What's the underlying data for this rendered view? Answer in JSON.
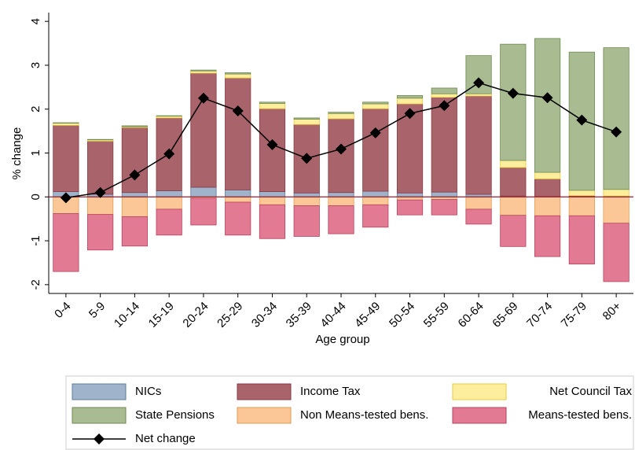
{
  "chart_data": {
    "type": "bar",
    "stacked": true,
    "x_label": "Age group",
    "y_label": "% change",
    "categories": [
      "0-4",
      "5-9",
      "10-14",
      "15-19",
      "20-24",
      "25-29",
      "30-34",
      "35-39",
      "40-44",
      "45-49",
      "50-54",
      "55-59",
      "60-64",
      "65-69",
      "70-74",
      "75-79",
      "80+"
    ],
    "ylim": [
      -2.2,
      4.2
    ],
    "yticks": [
      -2,
      -1,
      0,
      1,
      2,
      3,
      4
    ],
    "series": [
      {
        "name": "NICs",
        "color": "#9fb3ca",
        "stroke": "#5d7c9e",
        "values": [
          0.12,
          0.06,
          0.1,
          0.14,
          0.22,
          0.16,
          0.12,
          0.09,
          0.1,
          0.13,
          0.09,
          0.11,
          0.06,
          0.02,
          0.01,
          0.01,
          0.01
        ]
      },
      {
        "name": "Income Tax",
        "color": "#a9636b",
        "stroke": "#8a3a45",
        "values": [
          1.51,
          1.21,
          1.48,
          1.66,
          2.6,
          2.55,
          1.89,
          1.56,
          1.68,
          1.88,
          2.03,
          2.16,
          2.24,
          0.65,
          0.4,
          0.02,
          0.01
        ]
      },
      {
        "name": "Net Council Tax",
        "color": "#fcee9c",
        "stroke": "#e8cc40",
        "values": [
          0.05,
          0.03,
          0.02,
          0.04,
          0.05,
          0.09,
          0.12,
          0.12,
          0.12,
          0.11,
          0.13,
          0.08,
          0.05,
          0.16,
          0.15,
          0.12,
          0.15
        ]
      },
      {
        "name": "State Pensions",
        "color": "#a9bb90",
        "stroke": "#6f8a55",
        "values": [
          0.01,
          0.01,
          0.02,
          0.01,
          0.02,
          0.03,
          0.03,
          0.03,
          0.03,
          0.04,
          0.06,
          0.13,
          0.87,
          2.65,
          3.05,
          3.15,
          3.23
        ]
      },
      {
        "name": "Non Means-tested bens.",
        "color": "#fcc797",
        "stroke": "#e59a50",
        "values": [
          -0.38,
          -0.4,
          -0.45,
          -0.28,
          -0.03,
          -0.12,
          -0.18,
          -0.2,
          -0.2,
          -0.18,
          -0.07,
          -0.06,
          -0.28,
          -0.42,
          -0.43,
          -0.43,
          -0.6
        ]
      },
      {
        "name": "Means-tested bens.",
        "color": "#e17a92",
        "stroke": "#b8425f",
        "values": [
          -1.32,
          -0.81,
          -0.67,
          -0.59,
          -0.61,
          -0.75,
          -0.77,
          -0.7,
          -0.64,
          -0.51,
          -0.34,
          -0.35,
          -0.34,
          -0.71,
          -0.93,
          -1.1,
          -1.33
        ]
      },
      {
        "name": "Net change",
        "type": "line",
        "color": "#000000",
        "values": [
          -0.02,
          0.1,
          0.5,
          0.98,
          2.25,
          1.96,
          1.19,
          0.88,
          1.09,
          1.46,
          1.9,
          2.08,
          2.6,
          2.36,
          2.26,
          1.75,
          1.48
        ]
      }
    ]
  }
}
